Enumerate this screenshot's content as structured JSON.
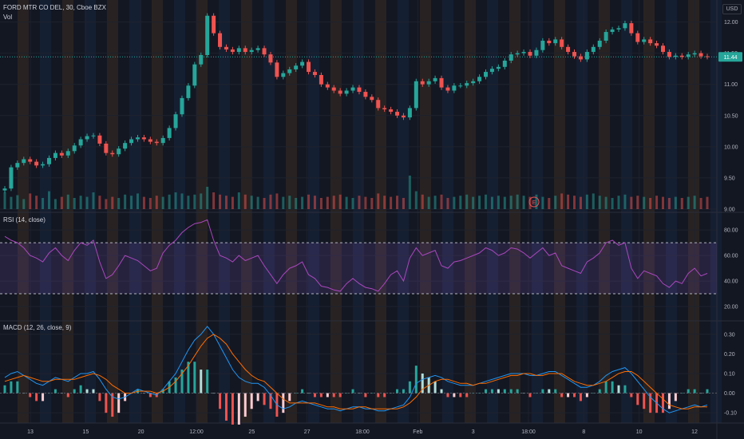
{
  "header": {
    "symbol": "FORD MTR CO DEL, 30, Cboe BZX",
    "volume_label": "Vol",
    "currency": "USD",
    "last_price": "11.44",
    "earnings_marker": "E"
  },
  "rsi": {
    "title": "RSI (14, close)",
    "upper_band": 70,
    "lower_band": 30
  },
  "macd": {
    "title": "MACD (12, 26, close, 9)"
  },
  "chart_data": [
    {
      "type": "line",
      "title": "FORD MTR CO DEL, 30, Cboe BZX",
      "ylabel": "USD",
      "y_ticks": [
        "12.00",
        "11.50",
        "11.00",
        "10.50",
        "10.00",
        "9.50",
        "9.00"
      ],
      "ylim": [
        9.0,
        12.25
      ],
      "x_ticks": [
        "13",
        "15",
        "20",
        "12:00",
        "25",
        "27",
        "18:00",
        "Feb",
        "3",
        "18:00",
        "8",
        "10",
        "12"
      ],
      "series": [
        {
          "values": [
            9.33,
            9.67,
            9.74,
            9.8,
            9.76,
            9.7,
            9.72,
            9.82,
            9.9,
            9.86,
            9.93,
            10.02,
            10.12,
            10.17,
            10.18,
            10.05,
            9.9,
            9.88,
            9.97,
            10.06,
            10.12,
            10.15,
            10.12,
            10.08,
            10.06,
            10.14,
            10.3,
            10.52,
            10.78,
            10.98,
            11.32,
            11.47,
            12.1,
            11.82,
            11.6,
            11.56,
            11.52,
            11.58,
            11.52,
            11.55,
            11.58,
            11.48,
            11.35,
            11.12,
            11.18,
            11.24,
            11.3,
            11.36,
            11.2,
            11.15,
            11.0,
            10.95,
            10.9,
            10.85,
            10.9,
            10.95,
            10.88,
            10.8,
            10.75,
            10.62,
            10.6,
            10.56,
            10.5,
            10.47,
            10.62,
            11.05,
            11.0,
            11.05,
            11.1,
            10.95,
            10.9,
            10.98,
            10.98,
            11.02,
            11.05,
            11.12,
            11.2,
            11.25,
            11.28,
            11.38,
            11.48,
            11.5,
            11.52,
            11.46,
            11.55,
            11.7,
            11.66,
            11.72,
            11.6,
            11.52,
            11.45,
            11.4,
            11.52,
            11.6,
            11.7,
            11.84,
            11.88,
            11.9,
            11.98,
            11.82,
            11.68,
            11.72,
            11.66,
            11.62,
            11.52,
            11.44,
            11.46,
            11.44,
            11.48,
            11.5,
            11.45,
            11.44
          ]
        }
      ],
      "volume": [
        30,
        22,
        25,
        18,
        28,
        24,
        20,
        32,
        18,
        22,
        26,
        20,
        24,
        22,
        30,
        24,
        18,
        22,
        20,
        26,
        24,
        28,
        22,
        20,
        24,
        22,
        26,
        30,
        28,
        24,
        26,
        28,
        40,
        30,
        26,
        24,
        22,
        30,
        26,
        24,
        22,
        20,
        26,
        28,
        22,
        24,
        20,
        22,
        26,
        24,
        20,
        22,
        24,
        26,
        22,
        20,
        24,
        22,
        20,
        28,
        24,
        22,
        24,
        20,
        60,
        32,
        26,
        22,
        24,
        26,
        20,
        22,
        24,
        26,
        22,
        24,
        26,
        22,
        24,
        22,
        24,
        26,
        24,
        22,
        26,
        22,
        20,
        24,
        28,
        26,
        24,
        22,
        26,
        28,
        24,
        22,
        20,
        24,
        26,
        22,
        24,
        22,
        20,
        24,
        22,
        20,
        22,
        20,
        22,
        24,
        20,
        22
      ],
      "y_ticks_volume": []
    },
    {
      "type": "line",
      "title": "RSI (14, close)",
      "y_ticks": [
        "80.00",
        "60.00",
        "40.00",
        "20.00"
      ],
      "ylim": [
        10,
        92
      ],
      "series": [
        {
          "values": [
            75,
            72,
            70,
            66,
            60,
            58,
            55,
            62,
            66,
            60,
            56,
            64,
            70,
            68,
            72,
            55,
            42,
            45,
            52,
            60,
            58,
            56,
            52,
            48,
            50,
            62,
            68,
            72,
            78,
            82,
            85,
            86,
            88,
            72,
            60,
            58,
            55,
            60,
            56,
            58,
            60,
            52,
            45,
            38,
            45,
            50,
            52,
            55,
            45,
            42,
            36,
            35,
            33,
            32,
            38,
            42,
            38,
            35,
            34,
            32,
            38,
            45,
            48,
            40,
            58,
            66,
            60,
            62,
            64,
            52,
            50,
            55,
            56,
            58,
            60,
            62,
            66,
            64,
            60,
            62,
            66,
            65,
            62,
            58,
            62,
            66,
            60,
            62,
            52,
            50,
            48,
            46,
            55,
            58,
            62,
            70,
            72,
            68,
            70,
            50,
            42,
            48,
            46,
            44,
            38,
            35,
            40,
            38,
            46,
            50,
            44,
            46
          ]
        }
      ]
    },
    {
      "type": "line",
      "title": "MACD (12, 26, close, 9)",
      "y_ticks": [
        "0.30",
        "0.20",
        "0.10",
        "0.00",
        "-0.10"
      ],
      "ylim": [
        -0.14,
        0.36
      ],
      "series": [
        {
          "values": [
            0.08,
            0.1,
            0.11,
            0.09,
            0.07,
            0.05,
            0.04,
            0.06,
            0.08,
            0.07,
            0.06,
            0.08,
            0.1,
            0.1,
            0.11,
            0.07,
            0.02,
            -0.02,
            -0.03,
            -0.02,
            0.0,
            0.02,
            0.01,
            0.0,
            -0.01,
            0.02,
            0.06,
            0.1,
            0.16,
            0.22,
            0.27,
            0.3,
            0.34,
            0.3,
            0.24,
            0.18,
            0.12,
            0.08,
            0.06,
            0.05,
            0.05,
            0.03,
            -0.01,
            -0.06,
            -0.08,
            -0.07,
            -0.05,
            -0.04,
            -0.05,
            -0.06,
            -0.07,
            -0.08,
            -0.08,
            -0.09,
            -0.08,
            -0.07,
            -0.07,
            -0.08,
            -0.08,
            -0.09,
            -0.09,
            -0.08,
            -0.07,
            -0.06,
            -0.02,
            0.05,
            0.07,
            0.08,
            0.09,
            0.08,
            0.06,
            0.05,
            0.04,
            0.04,
            0.04,
            0.05,
            0.06,
            0.07,
            0.08,
            0.09,
            0.1,
            0.1,
            0.1,
            0.09,
            0.09,
            0.1,
            0.11,
            0.11,
            0.09,
            0.07,
            0.05,
            0.03,
            0.03,
            0.04,
            0.06,
            0.09,
            0.11,
            0.12,
            0.13,
            0.1,
            0.06,
            0.02,
            -0.02,
            -0.05,
            -0.08,
            -0.1,
            -0.09,
            -0.08,
            -0.07,
            -0.06,
            -0.07,
            -0.06
          ]
        },
        {
          "values": [
            0.06,
            0.07,
            0.08,
            0.09,
            0.08,
            0.07,
            0.06,
            0.06,
            0.07,
            0.07,
            0.07,
            0.07,
            0.08,
            0.09,
            0.1,
            0.09,
            0.07,
            0.04,
            0.02,
            0.0,
            0.0,
            0.01,
            0.01,
            0.01,
            0.0,
            0.01,
            0.03,
            0.06,
            0.1,
            0.14,
            0.19,
            0.24,
            0.28,
            0.3,
            0.28,
            0.25,
            0.2,
            0.16,
            0.12,
            0.09,
            0.07,
            0.06,
            0.03,
            0.0,
            -0.03,
            -0.05,
            -0.05,
            -0.05,
            -0.05,
            -0.05,
            -0.06,
            -0.07,
            -0.07,
            -0.08,
            -0.08,
            -0.08,
            -0.07,
            -0.07,
            -0.08,
            -0.08,
            -0.08,
            -0.08,
            -0.08,
            -0.07,
            -0.05,
            -0.02,
            0.02,
            0.04,
            0.06,
            0.07,
            0.07,
            0.06,
            0.05,
            0.05,
            0.04,
            0.05,
            0.05,
            0.06,
            0.07,
            0.08,
            0.09,
            0.09,
            0.1,
            0.1,
            0.09,
            0.09,
            0.1,
            0.1,
            0.1,
            0.08,
            0.06,
            0.05,
            0.04,
            0.04,
            0.05,
            0.06,
            0.08,
            0.1,
            0.11,
            0.11,
            0.09,
            0.06,
            0.03,
            0.0,
            -0.03,
            -0.06,
            -0.07,
            -0.08,
            -0.08,
            -0.07,
            -0.07,
            -0.07
          ]
        }
      ]
    }
  ]
}
